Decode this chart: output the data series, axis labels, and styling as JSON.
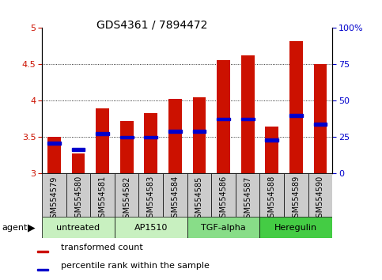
{
  "title": "GDS4361 / 7894472",
  "samples": [
    "GSM554579",
    "GSM554580",
    "GSM554581",
    "GSM554582",
    "GSM554583",
    "GSM554584",
    "GSM554585",
    "GSM554586",
    "GSM554587",
    "GSM554588",
    "GSM554589",
    "GSM554590"
  ],
  "red_values": [
    3.5,
    3.28,
    3.9,
    3.72,
    3.83,
    4.03,
    4.05,
    4.56,
    4.62,
    3.65,
    4.82,
    4.5
  ],
  "blue_values": [
    3.42,
    3.33,
    3.55,
    3.5,
    3.5,
    3.58,
    3.58,
    3.75,
    3.75,
    3.46,
    3.8,
    3.68
  ],
  "groups": [
    {
      "label": "untreated",
      "start": 0,
      "end": 3,
      "color": "#c8f0c0"
    },
    {
      "label": "AP1510",
      "start": 3,
      "end": 6,
      "color": "#c8f0c0"
    },
    {
      "label": "TGF-alpha",
      "start": 6,
      "end": 9,
      "color": "#88dd88"
    },
    {
      "label": "Heregulin",
      "start": 9,
      "end": 12,
      "color": "#44cc44"
    }
  ],
  "ylim": [
    3.0,
    5.0
  ],
  "yticks_left": [
    3.0,
    3.5,
    4.0,
    4.5,
    5.0
  ],
  "yticks_right": [
    0,
    25,
    50,
    75,
    100
  ],
  "bar_color": "#cc1100",
  "dot_color": "#0000cc",
  "bar_width": 0.55,
  "agent_label": "agent",
  "legend_red": "transformed count",
  "legend_blue": "percentile rank within the sample",
  "left_tick_color": "#cc1100",
  "right_tick_color": "#0000cc",
  "grid_vals": [
    3.5,
    4.0,
    4.5
  ],
  "tick_bg_color": "#cccccc",
  "title_fontsize": 10
}
